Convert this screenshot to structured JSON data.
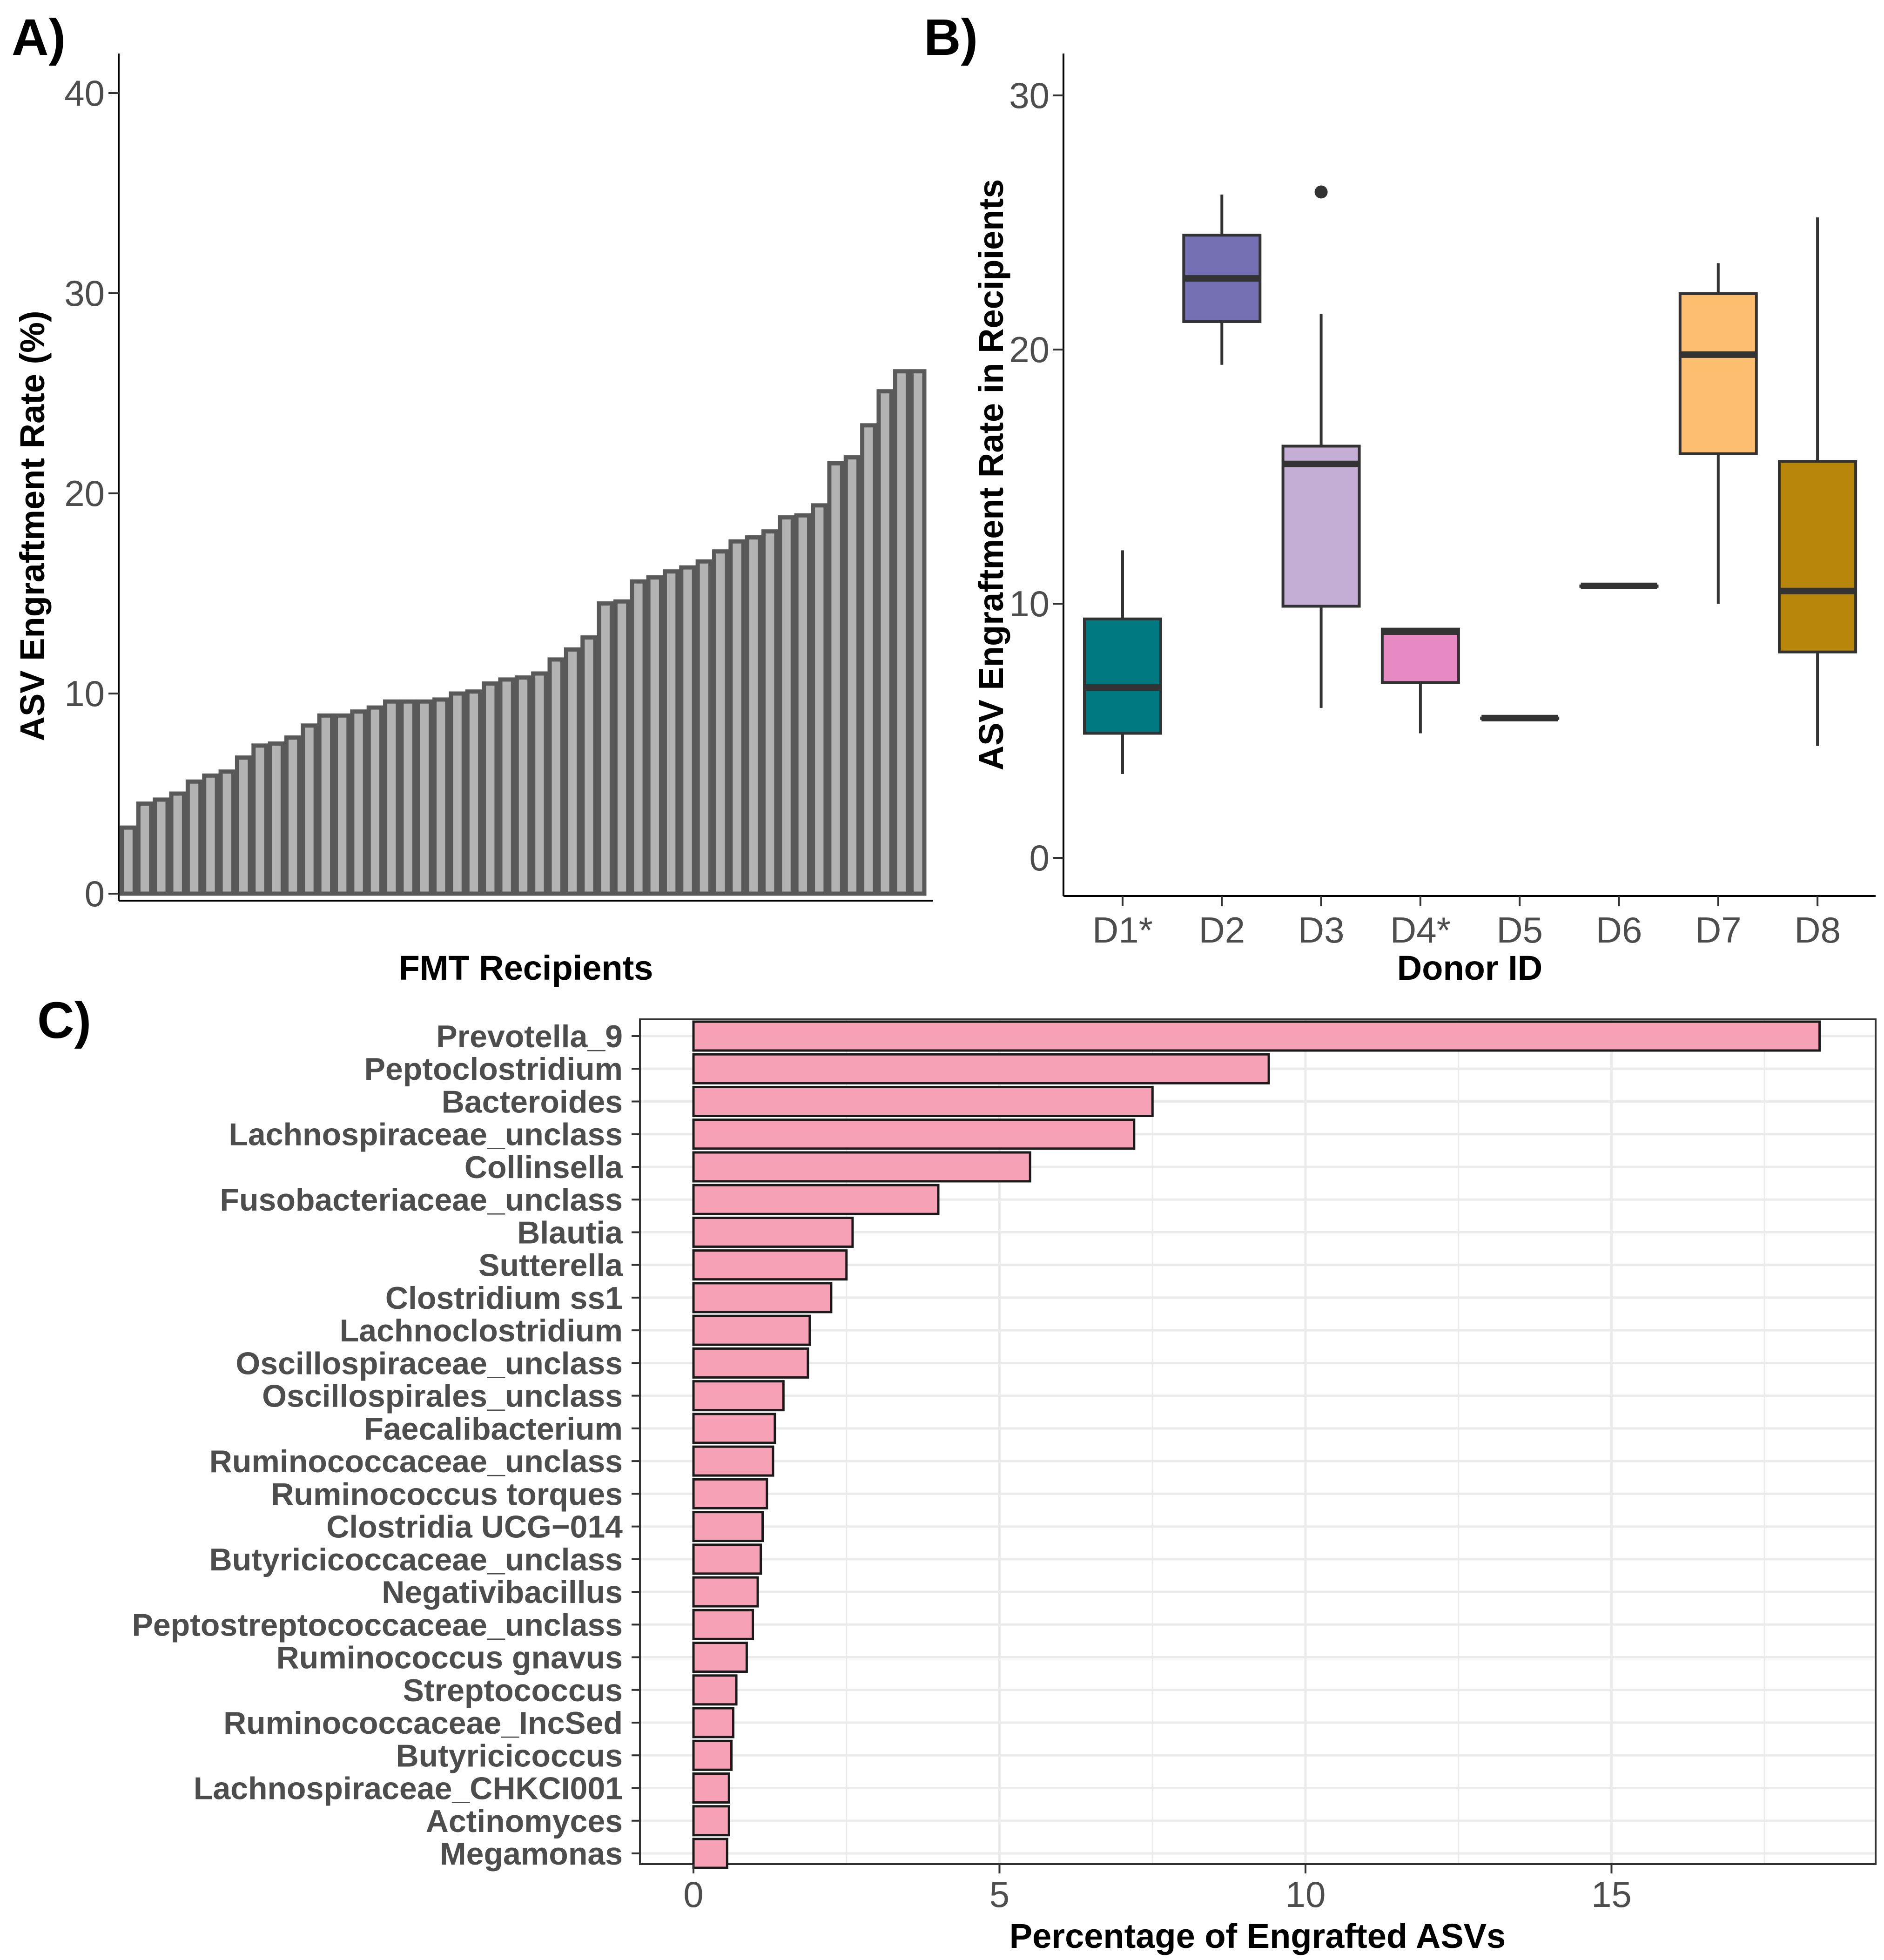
{
  "figure": {
    "panels": [
      "A)",
      "B)",
      "C)"
    ]
  },
  "colors": {
    "barA_fill": "#b3b3b3",
    "barA_stroke": "#595959",
    "barC_fill": "#f7a1b7",
    "grid": "#ebebeb",
    "axis": "#000000",
    "boxes": [
      "#007a80",
      "#7570b3",
      "#c5aed6",
      "#e78ac3",
      "#4d4d4d",
      "#4d4d4d",
      "#fdbf6f",
      "#b8860b"
    ]
  },
  "chart_data": [
    {
      "id": "A",
      "type": "bar",
      "title": "",
      "xlabel": "FMT Recipients",
      "ylabel": "ASV Engraftment Rate (%)",
      "ylim": [
        0,
        42
      ],
      "yticks": [
        0,
        10,
        20,
        30,
        40
      ],
      "grid": false,
      "values": [
        3.3,
        4.5,
        4.7,
        5.0,
        5.6,
        5.9,
        6.1,
        6.8,
        7.4,
        7.5,
        7.8,
        8.4,
        8.9,
        8.9,
        9.1,
        9.3,
        9.6,
        9.6,
        9.6,
        9.7,
        10.0,
        10.1,
        10.5,
        10.7,
        10.8,
        11.0,
        11.7,
        12.2,
        12.8,
        14.5,
        14.6,
        15.6,
        15.8,
        16.1,
        16.3,
        16.6,
        17.1,
        17.6,
        17.8,
        18.1,
        18.8,
        18.9,
        19.4,
        21.5,
        21.8,
        23.4,
        25.1,
        26.1,
        26.1
      ]
    },
    {
      "id": "B",
      "type": "box",
      "title": "",
      "xlabel": "Donor ID",
      "ylabel": "ASV Engraftment Rate in Recipients",
      "ylim": [
        -1.5,
        31.5
      ],
      "yticks": [
        0,
        10,
        20,
        30
      ],
      "grid": false,
      "categories": [
        "D1*",
        "D2",
        "D3",
        "D4*",
        "D5",
        "D6",
        "D7",
        "D8"
      ],
      "boxes": [
        {
          "min": 3.3,
          "q1": 4.9,
          "median": 6.7,
          "q3": 9.4,
          "max": 12.1,
          "outliers": []
        },
        {
          "min": 19.4,
          "q1": 21.1,
          "median": 22.8,
          "q3": 24.5,
          "max": 26.1,
          "outliers": []
        },
        {
          "min": 5.9,
          "q1": 9.9,
          "median": 15.5,
          "q3": 16.2,
          "max": 21.4,
          "outliers": [
            26.2
          ]
        },
        {
          "min": 4.9,
          "q1": 6.9,
          "median": 8.9,
          "q3": 9.0,
          "max": 9.0,
          "outliers": []
        },
        {
          "min": 5.5,
          "q1": 5.5,
          "median": 5.5,
          "q3": 5.5,
          "max": 5.5,
          "outliers": []
        },
        {
          "min": 10.7,
          "q1": 10.7,
          "median": 10.7,
          "q3": 10.7,
          "max": 10.7,
          "outliers": []
        },
        {
          "min": 10.0,
          "q1": 15.9,
          "median": 19.8,
          "q3": 22.2,
          "max": 23.4,
          "outliers": []
        },
        {
          "min": 4.4,
          "q1": 8.1,
          "median": 10.5,
          "q3": 15.6,
          "max": 25.2,
          "outliers": []
        }
      ]
    },
    {
      "id": "C",
      "type": "bar",
      "orientation": "horizontal",
      "title": "",
      "xlabel": "Percentage of Engrafted ASVs",
      "ylabel": "",
      "xlim": [
        -0.9,
        19.3
      ],
      "xticks": [
        0,
        5,
        10,
        15
      ],
      "grid": true,
      "categories": [
        "Prevotella_9",
        "Peptoclostridium",
        "Bacteroides",
        "Lachnospiraceae_unclass",
        "Collinsella",
        "Fusobacteriaceae_unclass",
        "Blautia",
        "Sutterella",
        "Clostridium ss1",
        "Lachnoclostridium",
        "Oscillospiraceae_unclass",
        "Oscillospirales_unclass",
        "Faecalibacterium",
        "Ruminococcaceae_unclass",
        "Ruminococcus torques",
        "Clostridia UCG−014",
        "Butyricicoccaceae_unclass",
        "Negativibacillus",
        "Peptostreptococcaceae_unclass",
        "Ruminococcus gnavus",
        "Streptococcus",
        "Ruminococcaceae_IncSed",
        "Butyricicoccus",
        "Lachnospiraceae_CHKCI001",
        "Actinomyces",
        "Megamonas"
      ],
      "values": [
        18.4,
        9.4,
        7.5,
        7.2,
        5.5,
        4.0,
        2.6,
        2.5,
        2.25,
        1.9,
        1.87,
        1.47,
        1.33,
        1.3,
        1.2,
        1.13,
        1.1,
        1.05,
        0.97,
        0.87,
        0.7,
        0.65,
        0.62,
        0.58,
        0.58,
        0.55
      ]
    }
  ]
}
